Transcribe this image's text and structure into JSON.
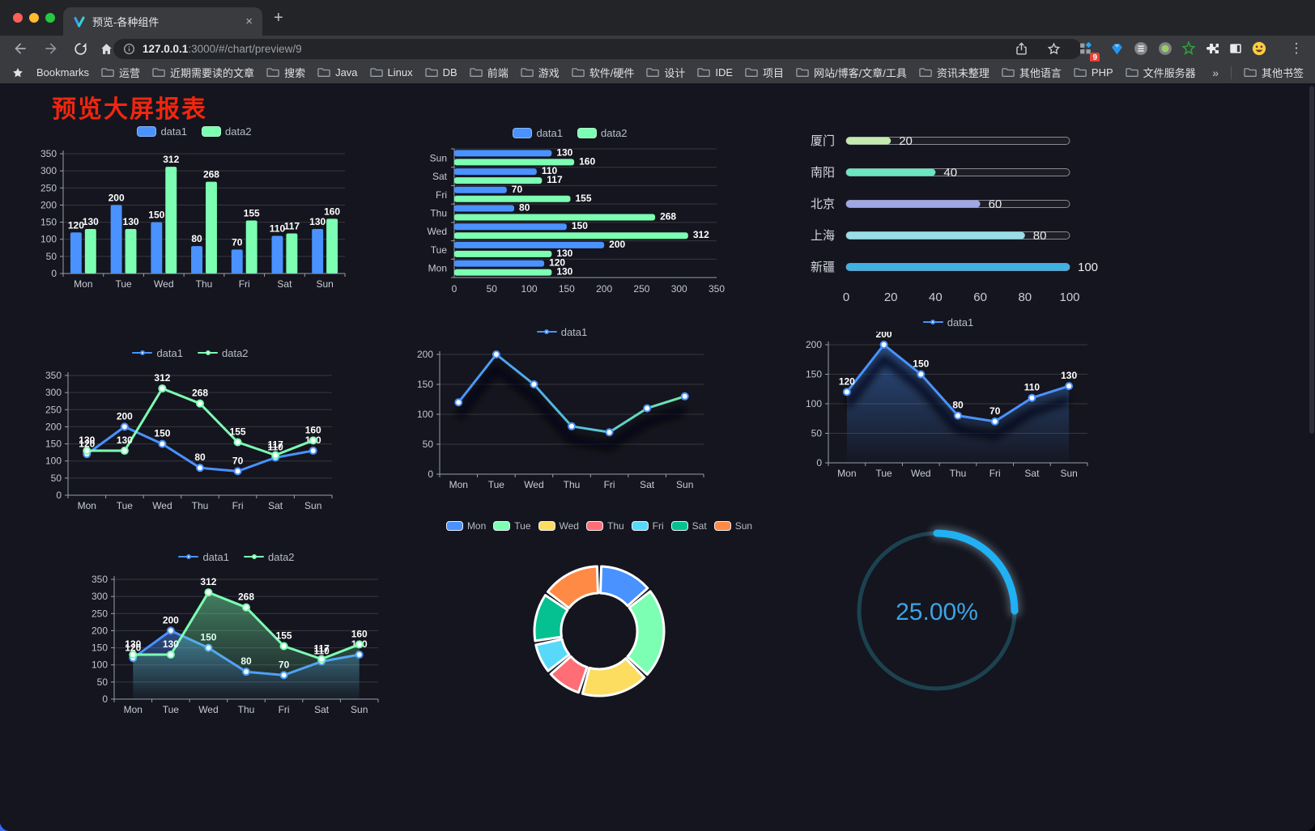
{
  "window": {
    "tab_title": "预览-各种组件",
    "tab_close_glyph": "×",
    "new_tab_glyph": "+",
    "url_host": "127.0.0.1",
    "url_path": ":3000/#/chart/preview/9",
    "extension_badge": "9",
    "menu_glyph": "⋮"
  },
  "bookmarks": {
    "bar_label": "Bookmarks",
    "folders": [
      "运营",
      "近期需要读的文章",
      "搜索",
      "Java",
      "Linux",
      "DB",
      "前端",
      "游戏",
      "软件/硬件",
      "设计",
      "IDE",
      "项目",
      "网站/博客/文章/工具",
      "资讯未整理",
      "其他语言",
      "PHP",
      "文件服务器"
    ],
    "overflow_glyph": "»",
    "other_bookmarks_label": "其他书签"
  },
  "page": {
    "title": "预览大屏报表",
    "title_color": "#f0260f",
    "background": "#14151e"
  },
  "chart_data": [
    {
      "id": "bar-grouped",
      "type": "bar",
      "legend": "rect",
      "show_labels": true,
      "categories": [
        "Mon",
        "Tue",
        "Wed",
        "Thu",
        "Fri",
        "Sat",
        "Sun"
      ],
      "series": [
        {
          "name": "data1",
          "color": "#4992ff",
          "values": [
            120,
            200,
            150,
            80,
            70,
            110,
            130
          ]
        },
        {
          "name": "data2",
          "color": "#7cffb2",
          "values": [
            130,
            130,
            312,
            268,
            155,
            117,
            160
          ]
        }
      ],
      "ymax": 350,
      "ytick": 50
    },
    {
      "id": "bar-horizontal",
      "type": "hbar",
      "legend": "rect",
      "show_labels": true,
      "categories": [
        "Mon",
        "Tue",
        "Wed",
        "Thu",
        "Fri",
        "Sat",
        "Sun"
      ],
      "series": [
        {
          "name": "data1",
          "color": "#4992ff",
          "values": [
            120,
            200,
            150,
            80,
            70,
            110,
            130
          ]
        },
        {
          "name": "data2",
          "color": "#7cffb2",
          "values": [
            130,
            130,
            312,
            268,
            155,
            117,
            160
          ]
        }
      ],
      "xmax": 350,
      "xtick": 50
    },
    {
      "id": "progress-list",
      "type": "progress",
      "xmax": 100,
      "rows": [
        {
          "label": "厦门",
          "value": 20,
          "color": "#c4ebad"
        },
        {
          "label": "南阳",
          "value": 40,
          "color": "#6be6c1"
        },
        {
          "label": "北京",
          "value": 60,
          "color": "#a0a7e6"
        },
        {
          "label": "上海",
          "value": 80,
          "color": "#96dee8"
        },
        {
          "label": "新疆",
          "value": 100,
          "color": "#3fb1e3"
        }
      ],
      "xticks": [
        0,
        20,
        40,
        60,
        80,
        100
      ]
    },
    {
      "id": "line-grouped",
      "type": "line",
      "legend": "circle",
      "show_labels": true,
      "categories": [
        "Mon",
        "Tue",
        "Wed",
        "Thu",
        "Fri",
        "Sat",
        "Sun"
      ],
      "series": [
        {
          "name": "data1",
          "color": "#4992ff",
          "values": [
            120,
            200,
            150,
            80,
            70,
            110,
            130
          ]
        },
        {
          "name": "data2",
          "color": "#7cffb2",
          "values": [
            130,
            130,
            312,
            268,
            155,
            117,
            160
          ]
        }
      ],
      "ymax": 350,
      "ytick": 50
    },
    {
      "id": "line-gradient",
      "type": "line",
      "legend": "circle",
      "show_labels": false,
      "categories": [
        "Mon",
        "Tue",
        "Wed",
        "Thu",
        "Fri",
        "Sat",
        "Sun"
      ],
      "series": [
        {
          "name": "data1",
          "color": "#4992ff",
          "color2": "#74e8a8",
          "shadow": true,
          "values": [
            120,
            200,
            150,
            80,
            70,
            110,
            130
          ]
        }
      ],
      "ymax": 200,
      "ytick": 50
    },
    {
      "id": "line-area",
      "type": "line",
      "legend": "circle",
      "show_labels": true,
      "categories": [
        "Mon",
        "Tue",
        "Wed",
        "Thu",
        "Fri",
        "Sat",
        "Sun"
      ],
      "series": [
        {
          "name": "data1",
          "color": "#4992ff",
          "area": true,
          "shadow": true,
          "values": [
            120,
            200,
            150,
            80,
            70,
            110,
            130
          ]
        }
      ],
      "ymax": 200,
      "ytick": 50
    },
    {
      "id": "line-area-grouped",
      "type": "line",
      "legend": "circle",
      "show_labels": true,
      "categories": [
        "Mon",
        "Tue",
        "Wed",
        "Thu",
        "Fri",
        "Sat",
        "Sun"
      ],
      "series": [
        {
          "name": "data1",
          "color": "#4992ff",
          "area": true,
          "values": [
            120,
            200,
            150,
            80,
            70,
            110,
            130
          ]
        },
        {
          "name": "data2",
          "color": "#7cffb2",
          "area": true,
          "values": [
            130,
            130,
            312,
            268,
            155,
            117,
            160
          ]
        }
      ],
      "ymax": 350,
      "ytick": 50
    },
    {
      "id": "donut",
      "type": "pie",
      "items": [
        {
          "name": "Mon",
          "value": 120,
          "color": "#4992ff"
        },
        {
          "name": "Tue",
          "value": 200,
          "color": "#7cffb2"
        },
        {
          "name": "Wed",
          "value": 150,
          "color": "#fddd60"
        },
        {
          "name": "Thu",
          "value": 80,
          "color": "#ff6e76"
        },
        {
          "name": "Fri",
          "value": 70,
          "color": "#58d9f9"
        },
        {
          "name": "Sat",
          "value": 110,
          "color": "#05c091"
        },
        {
          "name": "Sun",
          "value": 130,
          "color": "#ff8a45"
        }
      ]
    },
    {
      "id": "gauge",
      "type": "gauge",
      "value": 25,
      "max": 100,
      "label": "25.00%",
      "color": "#1fb1f3",
      "track_color": "#1c4250",
      "text_color": "#3da4e6"
    }
  ]
}
